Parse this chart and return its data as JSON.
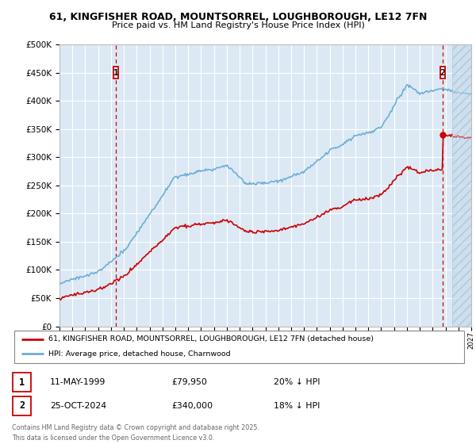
{
  "title_line1": "61, KINGFISHER ROAD, MOUNTSORREL, LOUGHBOROUGH, LE12 7FN",
  "title_line2": "Price paid vs. HM Land Registry's House Price Index (HPI)",
  "legend_label_red": "61, KINGFISHER ROAD, MOUNTSORREL, LOUGHBOROUGH, LE12 7FN (detached house)",
  "legend_label_blue": "HPI: Average price, detached house, Charnwood",
  "footnote": "Contains HM Land Registry data © Crown copyright and database right 2025.\nThis data is licensed under the Open Government Licence v3.0.",
  "marker1_date": "11-MAY-1999",
  "marker1_price": "£79,950",
  "marker1_hpi": "20% ↓ HPI",
  "marker2_date": "25-OCT-2024",
  "marker2_price": "£340,000",
  "marker2_hpi": "18% ↓ HPI",
  "yticks": [
    0,
    50000,
    100000,
    150000,
    200000,
    250000,
    300000,
    350000,
    400000,
    450000,
    500000
  ],
  "plot_bg_color": "#dce9f5",
  "red_color": "#cc0000",
  "blue_color": "#6baed6",
  "grid_color": "#ffffff",
  "marker_box_color": "#cc0000",
  "sale1_year": 1999.37,
  "sale1_price": 79950,
  "sale2_year": 2024.79,
  "sale2_price": 340000,
  "future_start": 2025.5,
  "x_min": 1995,
  "x_max": 2027
}
